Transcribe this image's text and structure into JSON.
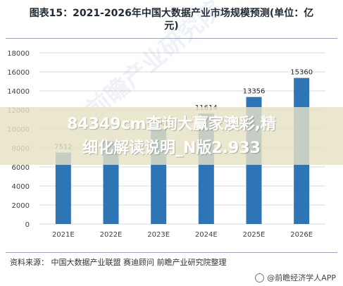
{
  "header": {
    "title_line1": "图表15：2021-2026年中国大数据产业市场规模预测(单位：亿",
    "title_line2": "元)"
  },
  "source": "资料来源：  中国大数据产业联盟 赛迪顾问 前瞻产业研究院整理",
  "watermark_brand": "@前瞻经济学人APP",
  "watermark_diagonal": "前瞻产业研究院",
  "overlay": {
    "line1": "84349cm查询大赢家澳彩,精",
    "line2": "细化解读说明_N版2.933"
  },
  "colors": {
    "bar": "#2e75b6",
    "grid": "#d9d9d9",
    "axis_text": "#404040"
  },
  "chart_data": {
    "type": "bar",
    "categories": [
      "2021E",
      "2022E",
      "2023E",
      "2024E",
      "2025E",
      "2026E"
    ],
    "values": [
      7512,
      8700,
      10000,
      11614,
      13356,
      15360
    ],
    "data_labels": [
      "7512",
      "",
      "10000",
      "11614",
      "13356",
      "15360"
    ],
    "ylim": [
      0,
      18000
    ],
    "yticks": [
      0,
      2000,
      4000,
      6000,
      8000,
      10000,
      12000,
      14000,
      16000,
      18000
    ],
    "grid": true,
    "title": "",
    "xlabel": "",
    "ylabel": ""
  }
}
